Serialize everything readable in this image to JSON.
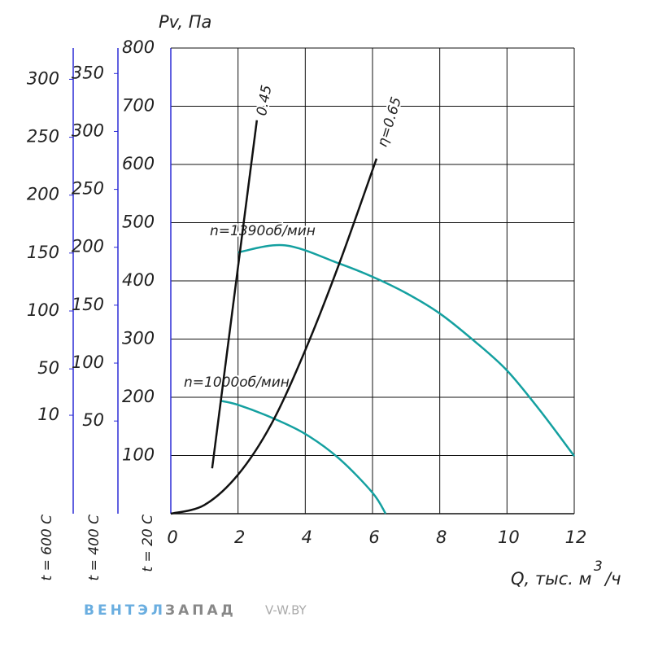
{
  "chart_data": {
    "type": "line",
    "y_title": "Pv, Па",
    "x_title": "Q, тыс. м",
    "x_title_sup": "3",
    "x_title_tail": "/ч",
    "y_axis_note": "t = 20 C",
    "xlim": [
      0,
      12
    ],
    "xticks": [
      0,
      2,
      4,
      6,
      8,
      10,
      12
    ],
    "ylim": [
      0,
      800
    ],
    "yticks": [
      100,
      200,
      300,
      400,
      500,
      600,
      700,
      800
    ],
    "grid": true,
    "extra_axes": [
      {
        "label": "t = 600 C",
        "ylim": [
          -75,
          327
        ],
        "yticks": [
          300,
          250,
          200,
          150,
          100,
          50,
          10
        ],
        "color": "#2b2bd6"
      },
      {
        "label": "t = 400 C",
        "ylim": [
          -30,
          372
        ],
        "yticks": [
          350,
          300,
          250,
          200,
          150,
          100,
          50
        ],
        "color": "#2b2bd6"
      }
    ],
    "series": [
      {
        "name": "n=1390об/мин",
        "color": "#14a0a0",
        "x": [
          2,
          3.4,
          5,
          6,
          7,
          8,
          9,
          10,
          11,
          12
        ],
        "values": [
          449,
          461,
          430,
          407,
          379,
          344,
          298,
          246,
          176,
          99
        ]
      },
      {
        "name": "n=1000об/мин",
        "color": "#14a0a0",
        "x": [
          1.48,
          2,
          3,
          4,
          5,
          6,
          6.39
        ],
        "values": [
          194,
          187,
          165,
          137,
          95,
          36,
          0
        ]
      },
      {
        "name": "0.45",
        "color": "#111111",
        "x": [
          1.23,
          2.56
        ],
        "values": [
          78,
          676
        ]
      },
      {
        "name": "η=0.65",
        "color": "#111111",
        "x": [
          0,
          1,
          2,
          3,
          4,
          5,
          6.12
        ],
        "values": [
          0,
          15,
          67,
          155,
          281,
          428,
          610
        ]
      }
    ]
  },
  "footer": {
    "brand_a": "ВЕНТЭЛ",
    "brand_b": "ЗАПАД",
    "site": "V-W.BY"
  }
}
